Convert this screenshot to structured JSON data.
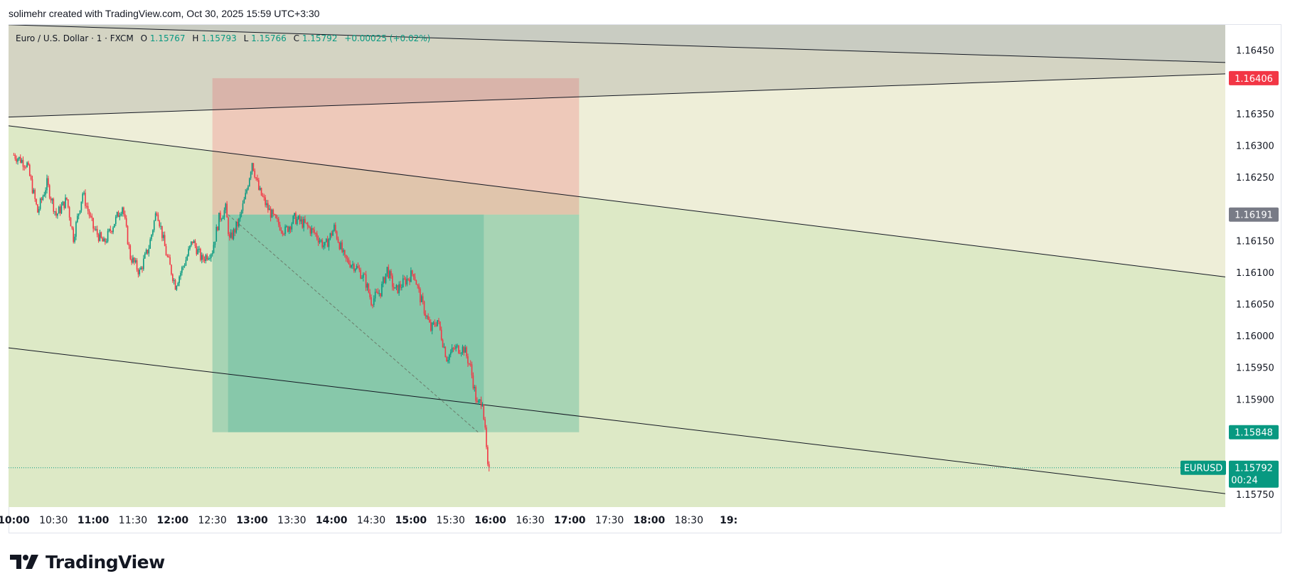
{
  "header": {
    "attribution": "solimehr created with TradingView.com, Oct 30, 2025 15:59 UTC+3:30"
  },
  "legend": {
    "symbol_desc": "Euro / U.S. Dollar · 1 · FXCM",
    "open_label": "O",
    "open_value": "1.15767",
    "high_label": "H",
    "high_value": "1.15793",
    "low_label": "L",
    "low_value": "1.15766",
    "close_label": "C",
    "close_value": "1.15792",
    "change": "+0.00025 (+0.02%)"
  },
  "brand": {
    "logo_text": "TradingView"
  },
  "colors": {
    "up": "#089981",
    "down": "#f23645",
    "stop_zone": "rgba(242,54,69,0.2)",
    "target_zone": "rgba(8,153,129,0.25)",
    "channel_upper": "rgba(120,123,134,0.25)",
    "channel_mid": "rgba(230,224,180,0.35)",
    "channel_lower": "rgba(180,210,140,0.35)"
  },
  "chart_data": {
    "type": "candlestick",
    "symbol": "EURUSD",
    "interval": "1",
    "ylim": [
      1.1573,
      1.1649
    ],
    "y_ticks": [
      "1.16450",
      "1.16350",
      "1.16300",
      "1.16250",
      "1.16150",
      "1.16100",
      "1.16050",
      "1.16000",
      "1.15950",
      "1.15900",
      "1.15750"
    ],
    "x_ticks": [
      {
        "label": "10:00",
        "bold": true
      },
      {
        "label": "10:30",
        "bold": false
      },
      {
        "label": "11:00",
        "bold": true
      },
      {
        "label": "11:30",
        "bold": false
      },
      {
        "label": "12:00",
        "bold": true
      },
      {
        "label": "12:30",
        "bold": false
      },
      {
        "label": "13:00",
        "bold": true
      },
      {
        "label": "13:30",
        "bold": false
      },
      {
        "label": "14:00",
        "bold": true
      },
      {
        "label": "14:30",
        "bold": false
      },
      {
        "label": "15:00",
        "bold": true
      },
      {
        "label": "15:30",
        "bold": false
      },
      {
        "label": "16:00",
        "bold": true
      },
      {
        "label": "16:30",
        "bold": false
      },
      {
        "label": "17:00",
        "bold": true
      },
      {
        "label": "17:30",
        "bold": false
      },
      {
        "label": "18:00",
        "bold": true
      },
      {
        "label": "18:30",
        "bold": false
      },
      {
        "label": "19:",
        "bold": true
      }
    ],
    "price_path": [
      [
        "10:00",
        1.16285
      ],
      [
        "10:10",
        1.1627
      ],
      [
        "10:18",
        1.16195
      ],
      [
        "10:25",
        1.1624
      ],
      [
        "10:32",
        1.1619
      ],
      [
        "10:40",
        1.16215
      ],
      [
        "10:45",
        1.16155
      ],
      [
        "10:52",
        1.16225
      ],
      [
        "11:00",
        1.1617
      ],
      [
        "11:08",
        1.16145
      ],
      [
        "11:15",
        1.16175
      ],
      [
        "11:22",
        1.16205
      ],
      [
        "11:28",
        1.16125
      ],
      [
        "11:35",
        1.161
      ],
      [
        "11:42",
        1.1614
      ],
      [
        "11:48",
        1.162
      ],
      [
        "11:55",
        1.1613
      ],
      [
        "12:02",
        1.1608
      ],
      [
        "12:10",
        1.1612
      ],
      [
        "12:15",
        1.1615
      ],
      [
        "12:22",
        1.1612
      ],
      [
        "12:30",
        1.16135
      ],
      [
        "12:35",
        1.16185
      ],
      [
        "12:40",
        1.162
      ],
      [
        "12:43",
        1.1615
      ],
      [
        "12:50",
        1.1618
      ],
      [
        "12:55",
        1.1622
      ],
      [
        "13:00",
        1.16275
      ],
      [
        "13:05",
        1.1623
      ],
      [
        "13:12",
        1.162
      ],
      [
        "13:18",
        1.1618
      ],
      [
        "13:25",
        1.16165
      ],
      [
        "13:32",
        1.16185
      ],
      [
        "13:40",
        1.16175
      ],
      [
        "13:48",
        1.1616
      ],
      [
        "13:55",
        1.1614
      ],
      [
        "14:02",
        1.1617
      ],
      [
        "14:10",
        1.1612
      ],
      [
        "14:18",
        1.1611
      ],
      [
        "14:25",
        1.1609
      ],
      [
        "14:30",
        1.16055
      ],
      [
        "14:37",
        1.1607
      ],
      [
        "14:42",
        1.16105
      ],
      [
        "14:48",
        1.1607
      ],
      [
        "14:55",
        1.16085
      ],
      [
        "15:02",
        1.161
      ],
      [
        "15:07",
        1.1606
      ],
      [
        "15:15",
        1.1601
      ],
      [
        "15:20",
        1.16025
      ],
      [
        "15:27",
        1.15965
      ],
      [
        "15:33",
        1.1598
      ],
      [
        "15:40",
        1.1598
      ],
      [
        "15:45",
        1.1595
      ],
      [
        "15:50",
        1.1589
      ],
      [
        "15:54",
        1.159
      ],
      [
        "15:57",
        1.1582
      ],
      [
        "15:59",
        1.1576
      ],
      [
        "15:59",
        1.15792
      ]
    ],
    "overlays": {
      "channel_lines": [
        {
          "name": "channel-top",
          "from": [
            "10:00",
            1.1649
          ],
          "to": [
            "19:00",
            1.16455
          ]
        },
        {
          "name": "channel-mid-upper",
          "from": [
            "10:00",
            1.16345
          ],
          "to": [
            "19:00",
            1.16385
          ]
        },
        {
          "name": "channel-mid-lower",
          "from": [
            "10:00",
            1.1633
          ],
          "to": [
            "19:00",
            1.1619
          ]
        },
        {
          "name": "channel-bottom",
          "from": [
            "10:00",
            1.1598
          ],
          "to": [
            "19:00",
            1.15845
          ]
        }
      ],
      "short_position": {
        "start": "12:30",
        "end": "17:07",
        "entry": 1.16191,
        "stop": 1.16406,
        "target": 1.15848,
        "filled_until": "15:55"
      }
    },
    "price_badges": [
      {
        "label": "1.16406",
        "price": 1.16406,
        "kind": "stop"
      },
      {
        "label": "1.16191",
        "price": 1.16191,
        "kind": "entry"
      },
      {
        "label": "1.15848",
        "price": 1.15848,
        "kind": "target"
      }
    ],
    "last_price": {
      "symbol_label": "EURUSD",
      "price_label": "1.15792",
      "price": 1.15792,
      "countdown": "00:24"
    }
  }
}
